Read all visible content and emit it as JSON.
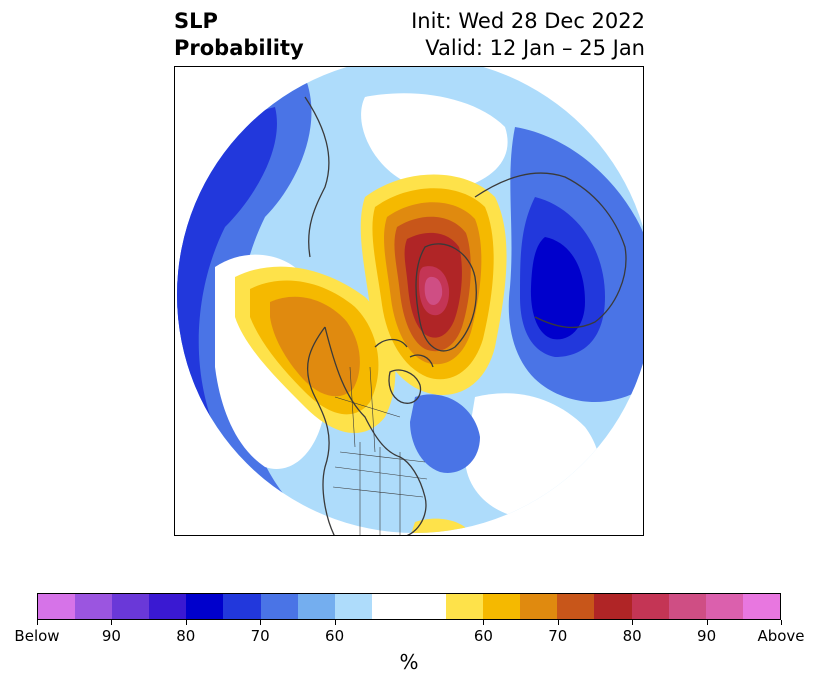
{
  "title": {
    "left_line1": "SLP",
    "left_line2": "Probability",
    "right_line1": "Init: Wed 28 Dec 2022",
    "right_line2": "Valid: 12 Jan – 25 Jan"
  },
  "colorbar": {
    "unit": "%",
    "colors": [
      "#d673e8",
      "#9b55e0",
      "#6a38d8",
      "#3a19d2",
      "#0000cc",
      "#2238dc",
      "#4a74e6",
      "#74aeef",
      "#aedcfb",
      "#ffffff",
      "#fee24a",
      "#f5b900",
      "#e08a0f",
      "#c8561a",
      "#b02526",
      "#c43555",
      "#cf4e84",
      "#db60ad",
      "#e877e0"
    ],
    "tick_labels": [
      "Below",
      "90",
      "80",
      "70",
      "60",
      "60",
      "70",
      "80",
      "90",
      "Above"
    ]
  },
  "map": {
    "projection": "north polar stereographic",
    "region": "Northern Hemisphere",
    "below_color": "#2238dc",
    "above_color": "#b02526"
  }
}
